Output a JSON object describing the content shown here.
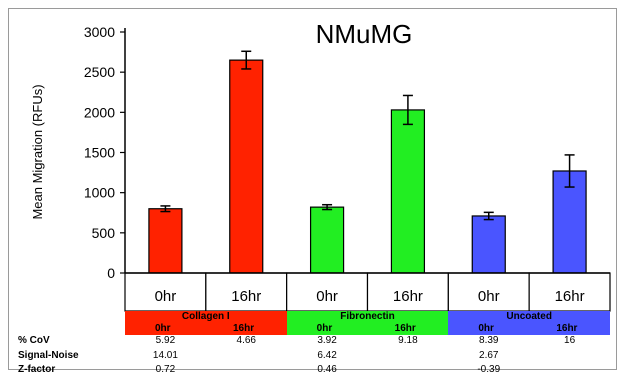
{
  "chart_data": {
    "type": "bar",
    "title": "NMuMG",
    "ylabel": "Mean Migration (RFUs)",
    "xlabel": "",
    "ylim": [
      0,
      3000
    ],
    "yticks": [
      0,
      500,
      1000,
      1500,
      2000,
      2500,
      3000
    ],
    "grid": false,
    "categories": [
      "0hr",
      "16hr",
      "0hr",
      "16hr",
      "0hr",
      "16hr"
    ],
    "values": [
      800,
      2650,
      820,
      2030,
      710,
      1270
    ],
    "errors": [
      35,
      110,
      30,
      180,
      45,
      200
    ],
    "colors": [
      "#ff2200",
      "#ff2200",
      "#22ee22",
      "#22ee22",
      "#4a55ff",
      "#4a55ff"
    ],
    "groups": [
      {
        "name": "Collagen I",
        "color": "#ff2200",
        "sub": [
          "0hr",
          "16hr"
        ]
      },
      {
        "name": "Fibronectin",
        "color": "#22ee22",
        "sub": [
          "0hr",
          "16hr"
        ]
      },
      {
        "name": "Uncoated",
        "color": "#4a55ff",
        "sub": [
          "0hr",
          "16hr"
        ]
      }
    ]
  },
  "stats": {
    "labels": [
      "% CoV",
      "Signal-Noise",
      "Z-factor"
    ],
    "cov": [
      "5.92",
      "4.66",
      "3.92",
      "9.18",
      "8.39",
      "16"
    ],
    "signal_noise": [
      "14.01",
      "6.42",
      "2.67"
    ],
    "z_factor": [
      "0.72",
      "0.46",
      "-0.39"
    ]
  }
}
